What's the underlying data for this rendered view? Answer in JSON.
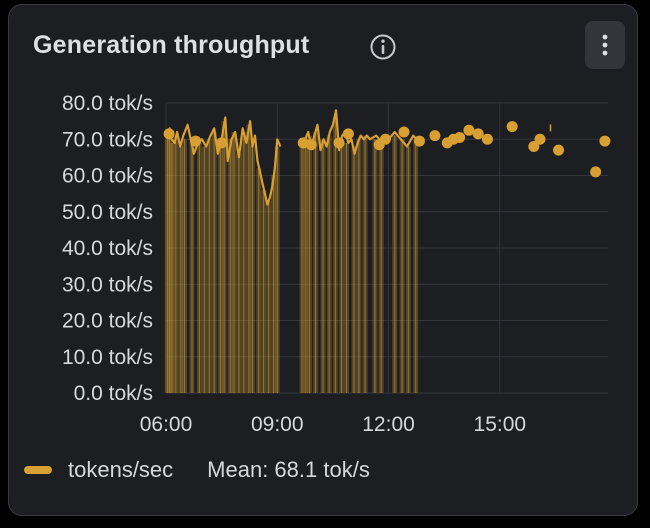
{
  "panel": {
    "title": "Generation throughput",
    "info_icon": "info-circle-icon",
    "menu_icon": "kebab-vertical-icon"
  },
  "legend": {
    "series_label": "tokens/sec",
    "mean_label": "Mean: 68.1 tok/s"
  },
  "colors": {
    "series": "#d8a032",
    "background": "#1d1e22",
    "grid": "#34353a"
  },
  "chart_data": {
    "type": "line",
    "y_tick_labels": [
      "0.0  tok/s",
      "10.0  tok/s",
      "20.0  tok/s",
      "30.0  tok/s",
      "40.0  tok/s",
      "50.0  tok/s",
      "60.0  tok/s",
      "70.0  tok/s",
      "80.0  tok/s"
    ],
    "y_ticks": [
      0,
      10,
      20,
      30,
      40,
      50,
      60,
      70,
      80
    ],
    "x_tick_labels": [
      "06:00",
      "09:00",
      "12:00",
      "15:00"
    ],
    "x_ticks": [
      "06:00",
      "09:00",
      "12:00",
      "15:00"
    ],
    "xlim": [
      "06:00",
      "17:55"
    ],
    "ylim": [
      0,
      80
    ],
    "grid": true,
    "legend_position": "bottom-left",
    "series": [
      {
        "name": "tokens/sec",
        "line_points": [
          [
            "06:00",
            71
          ],
          [
            "06:06",
            73
          ],
          [
            "06:09",
            70
          ],
          [
            "06:14",
            69
          ],
          [
            "06:18",
            72
          ],
          [
            "06:23",
            68
          ],
          [
            "06:28",
            71
          ],
          [
            "06:35",
            74
          ],
          [
            "06:40",
            70
          ],
          [
            "06:45",
            66
          ],
          [
            "06:52",
            69
          ],
          [
            "06:58",
            70
          ],
          [
            "07:05",
            68
          ],
          [
            "07:12",
            71
          ],
          [
            "07:18",
            73
          ],
          [
            "07:24",
            66
          ],
          [
            "07:30",
            70
          ],
          [
            "07:36",
            76
          ],
          [
            "07:40",
            64
          ],
          [
            "07:46",
            70
          ],
          [
            "07:52",
            72
          ],
          [
            "07:58",
            65
          ],
          [
            "08:04",
            73
          ],
          [
            "08:10",
            69
          ],
          [
            "08:16",
            75
          ],
          [
            "08:20",
            68
          ],
          [
            "08:24",
            71
          ],
          [
            "08:28",
            64
          ],
          [
            "08:32",
            61
          ],
          [
            "08:36",
            58
          ],
          [
            "08:40",
            55
          ],
          [
            "08:44",
            52
          ],
          [
            "08:48",
            54
          ],
          [
            "08:52",
            57
          ],
          [
            "08:56",
            62
          ],
          [
            "09:00",
            70
          ],
          [
            "09:05",
            68
          ],
          [
            "09:40",
            69
          ],
          [
            "09:45",
            70
          ],
          [
            "09:50",
            72
          ],
          [
            "09:55",
            68
          ],
          [
            "10:00",
            71
          ],
          [
            "10:05",
            74
          ],
          [
            "10:10",
            67
          ],
          [
            "10:15",
            70
          ],
          [
            "10:20",
            68
          ],
          [
            "10:25",
            72
          ],
          [
            "10:30",
            74
          ],
          [
            "10:35",
            78
          ],
          [
            "10:40",
            67
          ],
          [
            "10:45",
            71
          ],
          [
            "10:50",
            72
          ],
          [
            "10:55",
            69
          ],
          [
            "11:00",
            70
          ],
          [
            "11:05",
            66
          ],
          [
            "11:10",
            69
          ],
          [
            "11:15",
            71
          ],
          [
            "11:20",
            70
          ],
          [
            "11:25",
            71
          ],
          [
            "11:30",
            70
          ],
          [
            "11:40",
            71
          ],
          [
            "11:50",
            69
          ],
          [
            "12:00",
            70
          ],
          [
            "12:10",
            72
          ],
          [
            "12:20",
            70
          ],
          [
            "12:30",
            68
          ],
          [
            "12:40",
            71
          ],
          [
            "12:45",
            70
          ]
        ],
        "points": [
          [
            "06:05",
            71.5
          ],
          [
            "06:48",
            69.5
          ],
          [
            "07:30",
            69
          ],
          [
            "09:42",
            69
          ],
          [
            "09:55",
            68.5
          ],
          [
            "10:40",
            69
          ],
          [
            "10:55",
            71.5
          ],
          [
            "11:45",
            68.5
          ],
          [
            "11:55",
            70
          ],
          [
            "12:25",
            72
          ],
          [
            "12:50",
            69.5
          ],
          [
            "13:15",
            71
          ],
          [
            "13:35",
            69
          ],
          [
            "13:45",
            70
          ],
          [
            "13:55",
            70.5
          ],
          [
            "14:10",
            72.5
          ],
          [
            "14:25",
            71.5
          ],
          [
            "14:40",
            70
          ],
          [
            "15:20",
            73.5
          ],
          [
            "15:55",
            68
          ],
          [
            "16:05",
            70
          ],
          [
            "16:35",
            67
          ],
          [
            "17:35",
            61
          ],
          [
            "17:50",
            69.5
          ]
        ],
        "tick_marks": [
          [
            "16:22",
            73
          ]
        ],
        "bars": [
          [
            "06:02",
            70
          ],
          [
            "06:06",
            72
          ],
          [
            "06:10",
            69
          ],
          [
            "06:16",
            71
          ],
          [
            "06:24",
            68
          ],
          [
            "06:30",
            70
          ],
          [
            "06:42",
            70
          ],
          [
            "06:54",
            69
          ],
          [
            "07:02",
            68
          ],
          [
            "07:10",
            70
          ],
          [
            "07:18",
            72
          ],
          [
            "07:28",
            69
          ],
          [
            "07:34",
            75
          ],
          [
            "07:44",
            70
          ],
          [
            "07:50",
            72
          ],
          [
            "07:58",
            66
          ],
          [
            "08:06",
            72
          ],
          [
            "08:14",
            74
          ],
          [
            "08:20",
            68
          ],
          [
            "08:30",
            62
          ],
          [
            "08:38",
            56
          ],
          [
            "08:46",
            53
          ],
          [
            "08:54",
            60
          ],
          [
            "09:00",
            68
          ],
          [
            "09:40",
            69
          ],
          [
            "09:46",
            70
          ],
          [
            "09:52",
            71
          ],
          [
            "10:02",
            72
          ],
          [
            "10:14",
            70
          ],
          [
            "10:24",
            71
          ],
          [
            "10:34",
            76
          ],
          [
            "10:44",
            70
          ],
          [
            "10:52",
            69
          ],
          [
            "11:04",
            68
          ],
          [
            "11:12",
            70
          ],
          [
            "11:22",
            71
          ],
          [
            "11:38",
            70
          ],
          [
            "11:48",
            69
          ],
          [
            "12:10",
            71
          ],
          [
            "12:22",
            70
          ],
          [
            "12:32",
            68
          ],
          [
            "12:44",
            70
          ]
        ]
      }
    ]
  }
}
